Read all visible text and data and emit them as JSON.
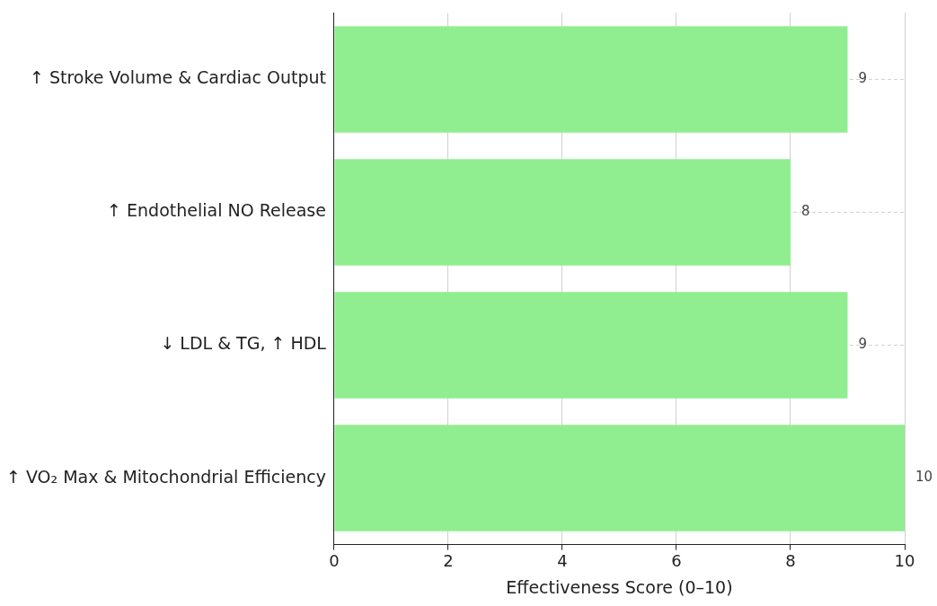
{
  "chart_data": {
    "type": "bar",
    "orientation": "horizontal",
    "xlabel": "Effectiveness Score (0–10)",
    "categories": [
      "↑ Stroke Volume & Cardiac Output",
      "↑ Endothelial NO Release",
      "↓ LDL & TG, ↑ HDL",
      "↑ VO₂ Max & Mitochondrial Efficiency"
    ],
    "values": [
      9,
      8,
      9,
      10
    ],
    "color": "#90ee90",
    "xlim": [
      0,
      10
    ],
    "xticks": [
      0,
      2,
      4,
      6,
      8,
      10
    ],
    "grid": true,
    "data_labels": true
  }
}
